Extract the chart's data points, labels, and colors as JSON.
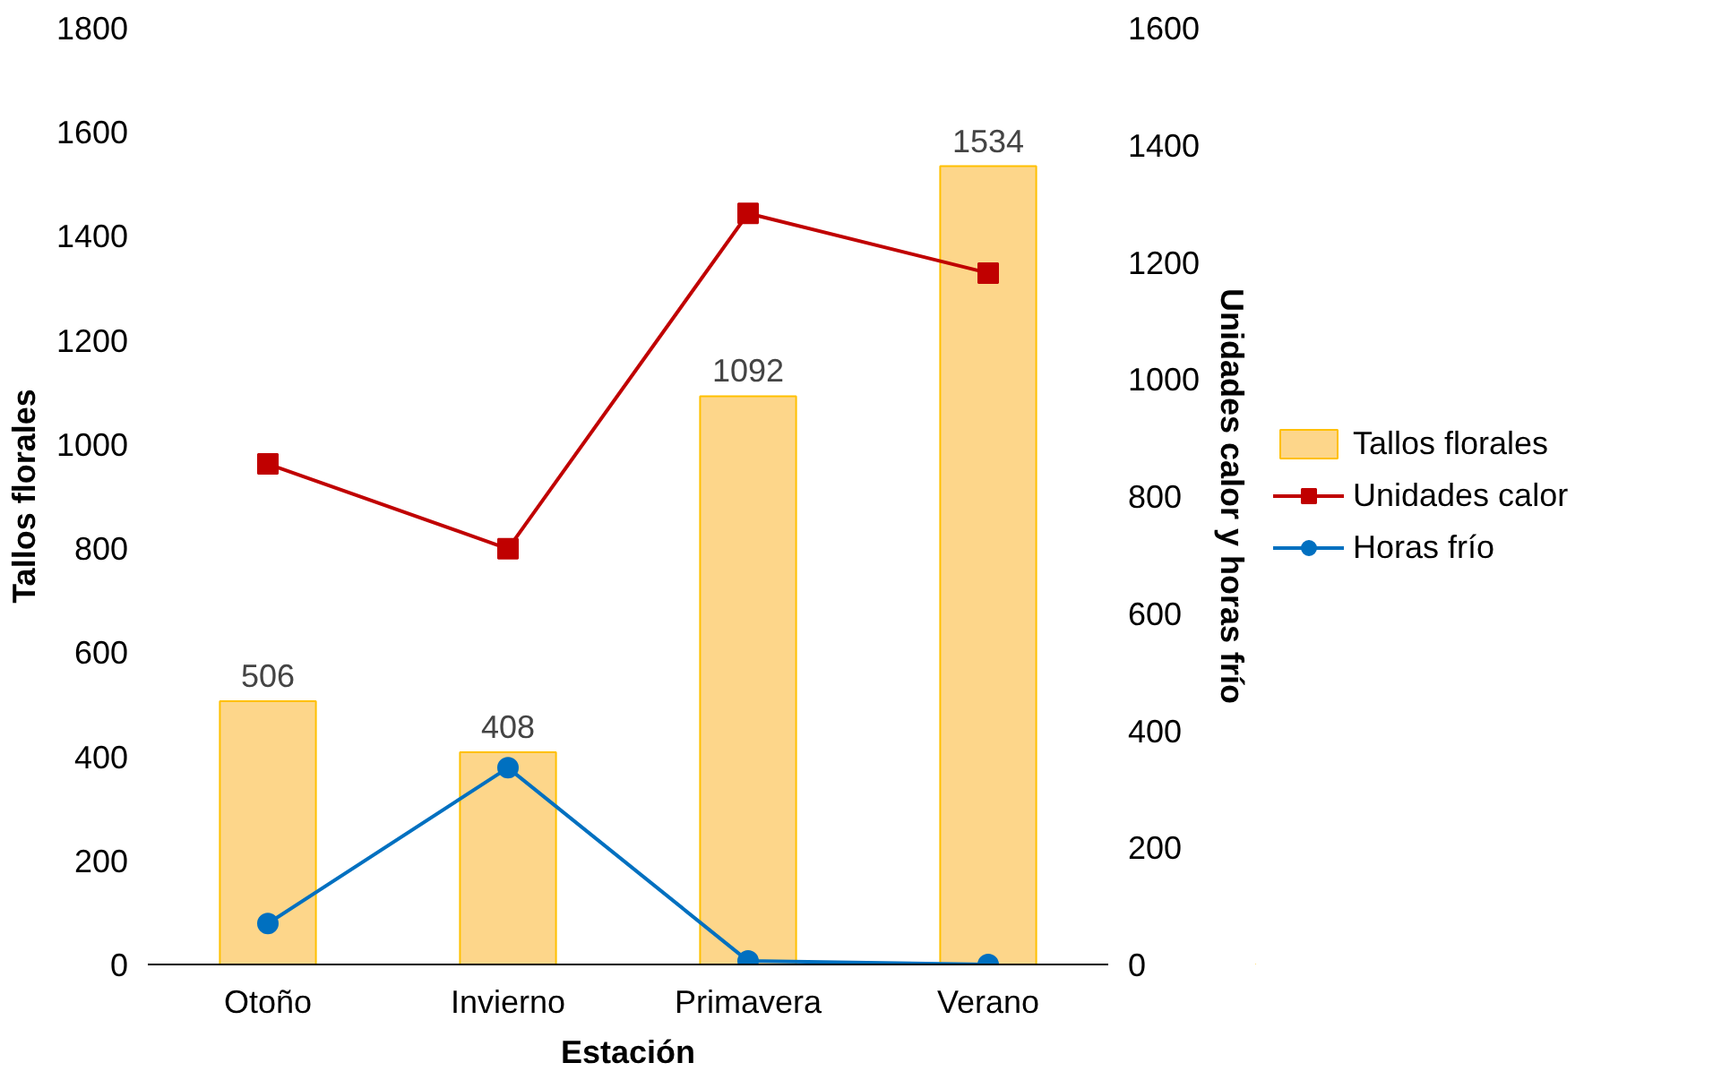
{
  "chart_data": {
    "type": "bar",
    "xlabel": "Estación",
    "ylabel": "Tallos florales",
    "y2label": "Unidades calor y horas frío",
    "categories": [
      "Otoño",
      "Invierno",
      "Primavera",
      "Verano"
    ],
    "series": [
      {
        "name": "Tallos florales",
        "color": "#fdd68a",
        "values": [
          506,
          408,
          1092,
          1534
        ],
        "value_labels": [
          "506",
          "408",
          "1092",
          "1534"
        ]
      },
      {
        "name": "Unidades calor",
        "type": "line",
        "axis": "y2",
        "marker": "square",
        "color": "#c00000",
        "values": [
          855,
          710,
          1283,
          1181
        ]
      },
      {
        "name": "Horas frío",
        "type": "line",
        "axis": "y2",
        "marker": "circle",
        "color": "#0070c0",
        "values": [
          70,
          336,
          6,
          0
        ]
      }
    ],
    "ylim": [
      0,
      1800
    ],
    "yticks": [
      0,
      200,
      400,
      600,
      800,
      1000,
      1200,
      1400,
      1600,
      1800
    ],
    "y2lim": [
      0,
      1600
    ],
    "y2ticks": [
      0,
      200,
      400,
      600,
      800,
      1000,
      1200,
      1400,
      1600
    ],
    "grid": false,
    "legend": "right"
  }
}
